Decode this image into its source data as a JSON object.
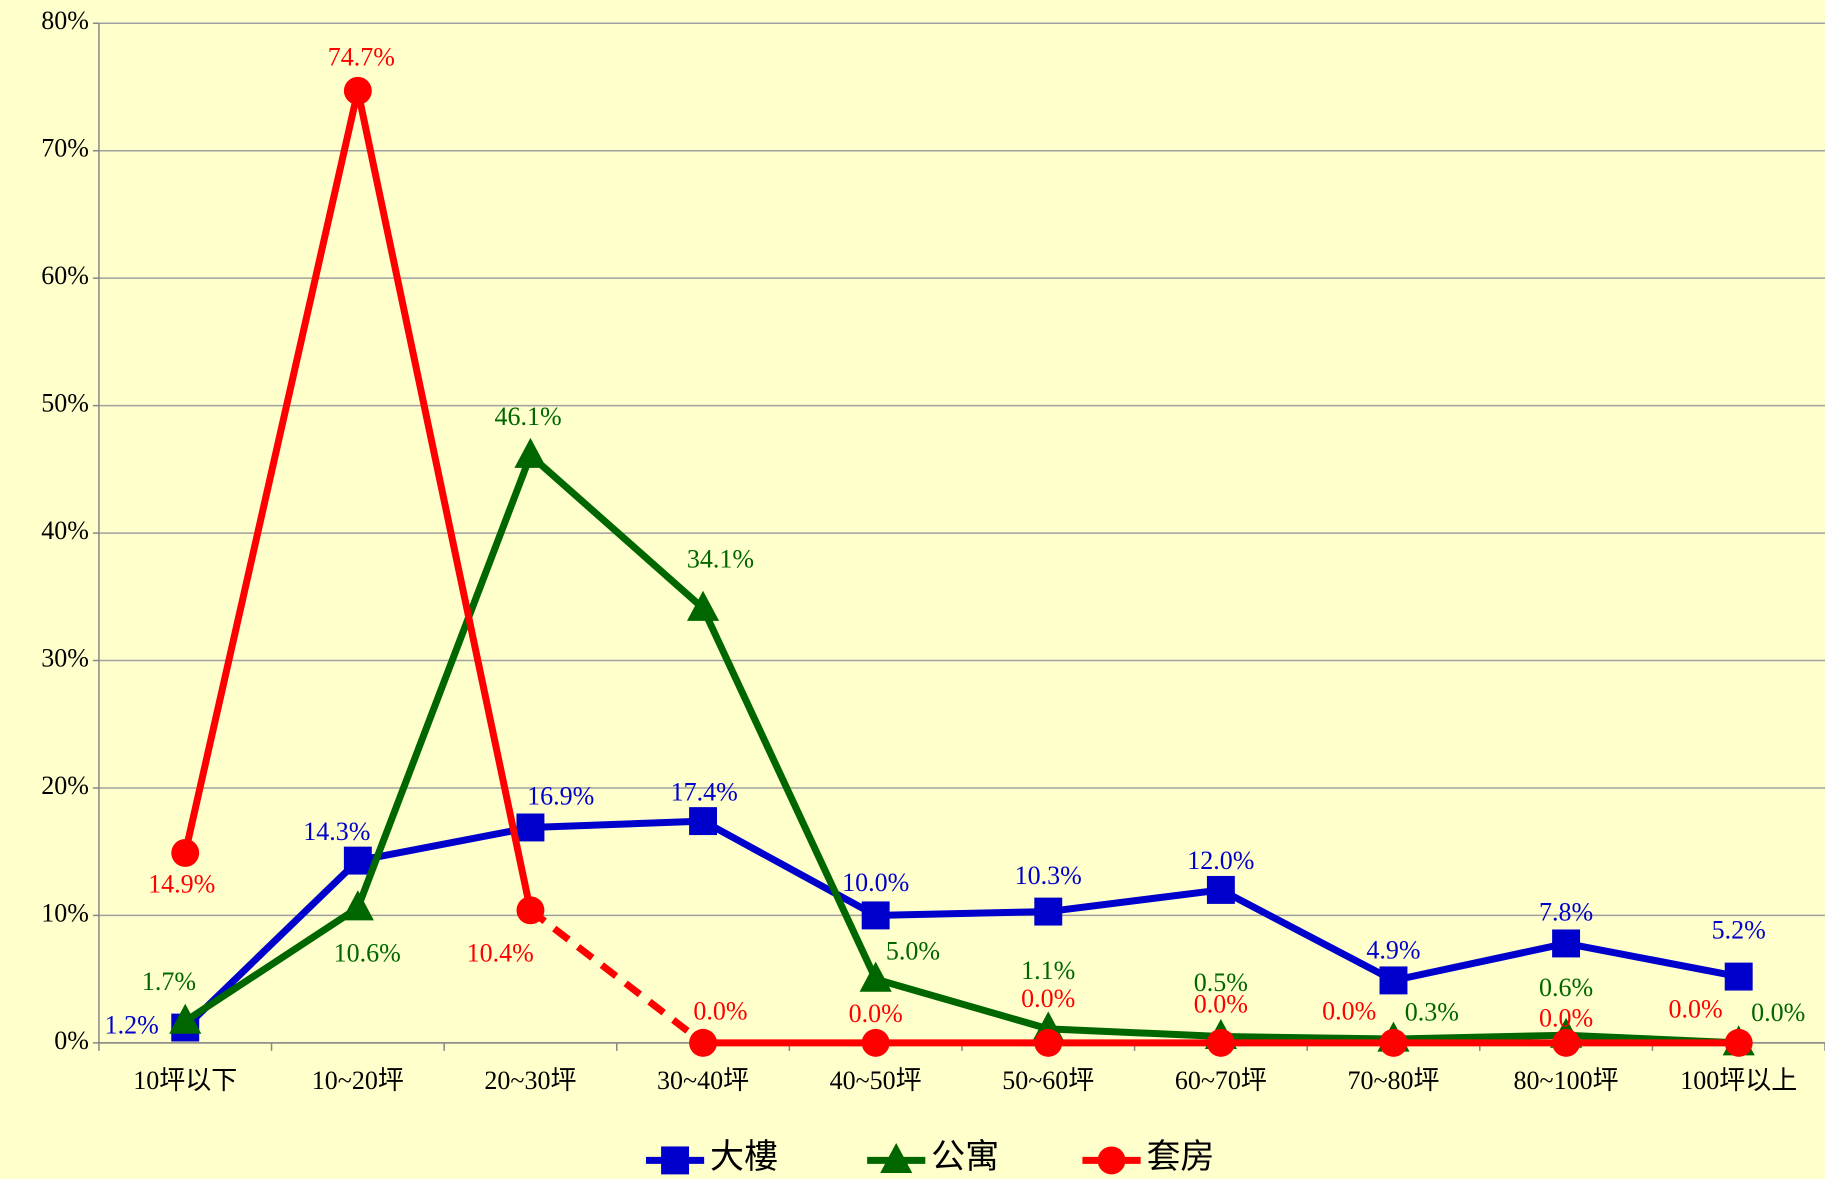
{
  "chart_data": {
    "type": "line",
    "categories": [
      "10坪以下",
      "10~20坪",
      "20~30坪",
      "30~40坪",
      "40~50坪",
      "50~60坪",
      "60~70坪",
      "70~80坪",
      "80~100坪",
      "100坪以上"
    ],
    "series": [
      {
        "name": "大樓",
        "color": "#0000cc",
        "marker": "square",
        "values": [
          1.2,
          14.3,
          16.9,
          17.4,
          10.0,
          10.3,
          12.0,
          4.9,
          7.8,
          5.2
        ],
        "value_labels": [
          "1.2%",
          "14.3%",
          "16.9%",
          "17.4%",
          "10.0%",
          "10.3%",
          "12.0%",
          "4.9%",
          "7.8%",
          "5.2%"
        ]
      },
      {
        "name": "公寓",
        "color": "#006600",
        "marker": "triangle",
        "values": [
          1.7,
          10.6,
          46.1,
          34.1,
          5.0,
          1.1,
          0.5,
          0.3,
          0.6,
          0.0
        ],
        "value_labels": [
          "1.7%",
          "10.6%",
          "46.1%",
          "34.1%",
          "5.0%",
          "1.1%",
          "0.5%",
          "0.3%",
          "0.6%",
          "0.0%"
        ]
      },
      {
        "name": "套房",
        "color": "#ff0000",
        "marker": "circle",
        "dashed_segments": [
          2
        ],
        "values": [
          14.9,
          74.7,
          10.4,
          0.0,
          0.0,
          0.0,
          0.0,
          0.0,
          0.0,
          0.0
        ],
        "value_labels": [
          "14.9%",
          "74.7%",
          "10.4%",
          "0.0%",
          "0.0%",
          "0.0%",
          "0.0%",
          "0.0%",
          "0.0%",
          "0.0%"
        ]
      }
    ],
    "ylim": [
      0,
      80
    ],
    "yticks": [
      {
        "value": 0,
        "label": "0%"
      },
      {
        "value": 10,
        "label": "10%"
      },
      {
        "value": 20,
        "label": "20%"
      },
      {
        "value": 30,
        "label": "30%"
      },
      {
        "value": 40,
        "label": "40%"
      },
      {
        "value": 50,
        "label": "50%"
      },
      {
        "value": 60,
        "label": "60%"
      },
      {
        "value": 70,
        "label": "70%"
      },
      {
        "value": 80,
        "label": "80%"
      }
    ],
    "grid": true,
    "legend": "bottom"
  }
}
